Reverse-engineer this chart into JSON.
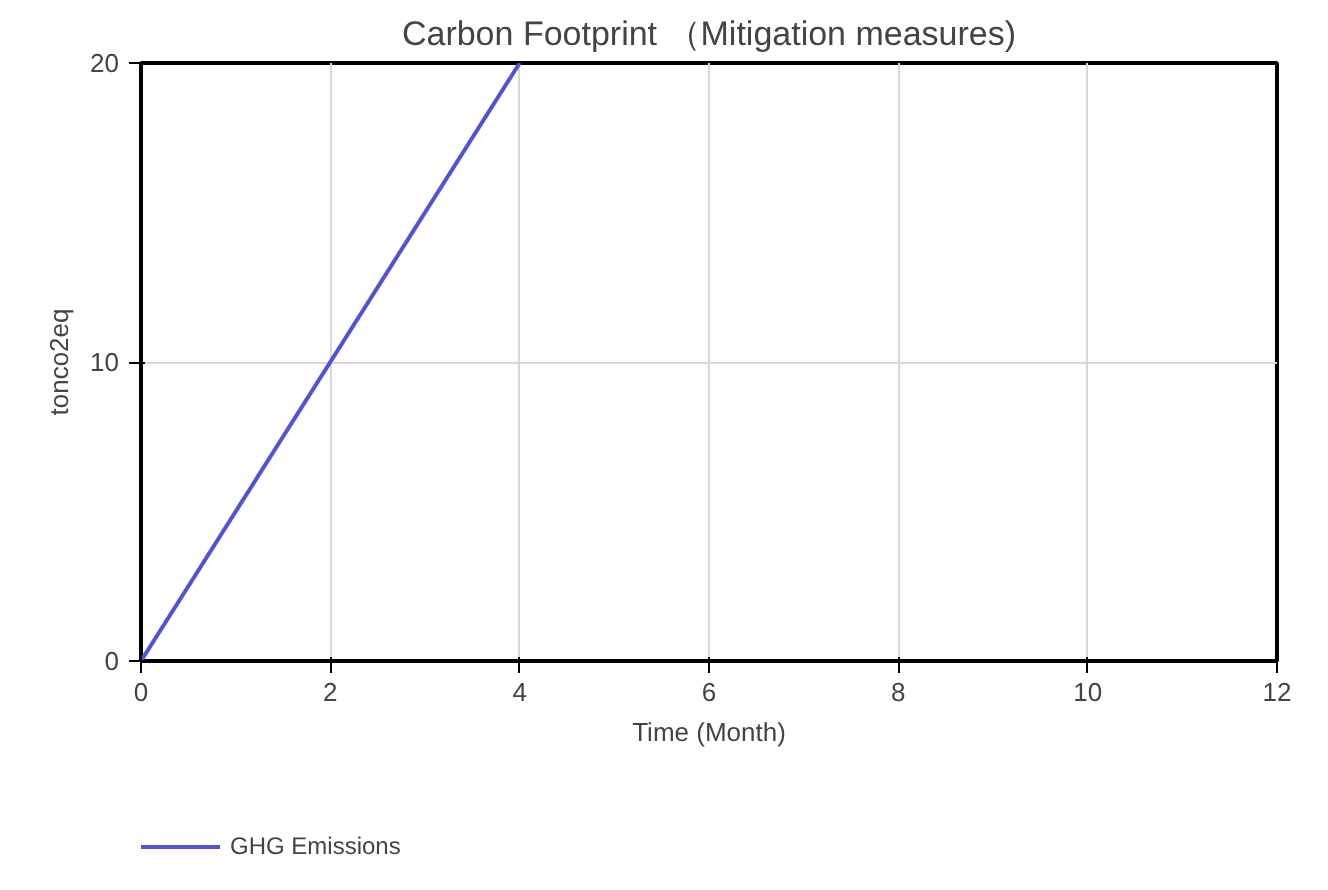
{
  "chart_data": {
    "type": "line",
    "title": "Carbon Footprint （Mitigation measures)",
    "xlabel": "Time (Month)",
    "ylabel": "tonco2eq",
    "x": [
      0,
      4
    ],
    "series": [
      {
        "name": "GHG Emissions",
        "color": "#5252d4",
        "values": [
          0,
          20
        ]
      }
    ],
    "xlim": [
      0,
      12
    ],
    "xticks": [
      0,
      2,
      4,
      6,
      8,
      10,
      12
    ],
    "ylim": [
      0,
      20
    ],
    "yticks": [
      0,
      10,
      20
    ],
    "grid": true,
    "legend": "bottom left",
    "marker": "none",
    "line_style": "solid"
  }
}
